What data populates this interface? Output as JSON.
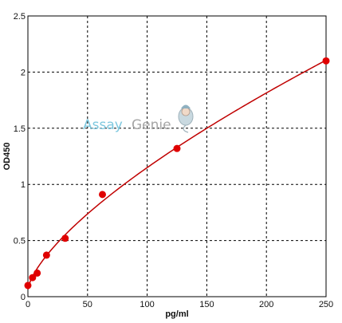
{
  "watermark": {
    "part1": "Assay",
    "part2": "Genie"
  },
  "chart_data": {
    "type": "scatter",
    "title": "",
    "xlabel": "pg/ml",
    "ylabel": "OD450",
    "xlim": [
      0,
      250
    ],
    "ylim": [
      0,
      2.5
    ],
    "xticks": [
      0,
      50,
      100,
      150,
      200,
      250
    ],
    "yticks": [
      0,
      0.5,
      1,
      1.5,
      2,
      2.5
    ],
    "grid": true,
    "series": [
      {
        "points": [
          {
            "x": 0,
            "y": 0.1
          },
          {
            "x": 3.9,
            "y": 0.17
          },
          {
            "x": 7.8,
            "y": 0.21
          },
          {
            "x": 15.6,
            "y": 0.37
          },
          {
            "x": 31.25,
            "y": 0.52
          },
          {
            "x": 62.5,
            "y": 0.91
          },
          {
            "x": 125,
            "y": 1.32
          },
          {
            "x": 250,
            "y": 2.1
          }
        ],
        "color": "#e00000"
      }
    ],
    "fit_line": {
      "color": "#c00000"
    }
  }
}
